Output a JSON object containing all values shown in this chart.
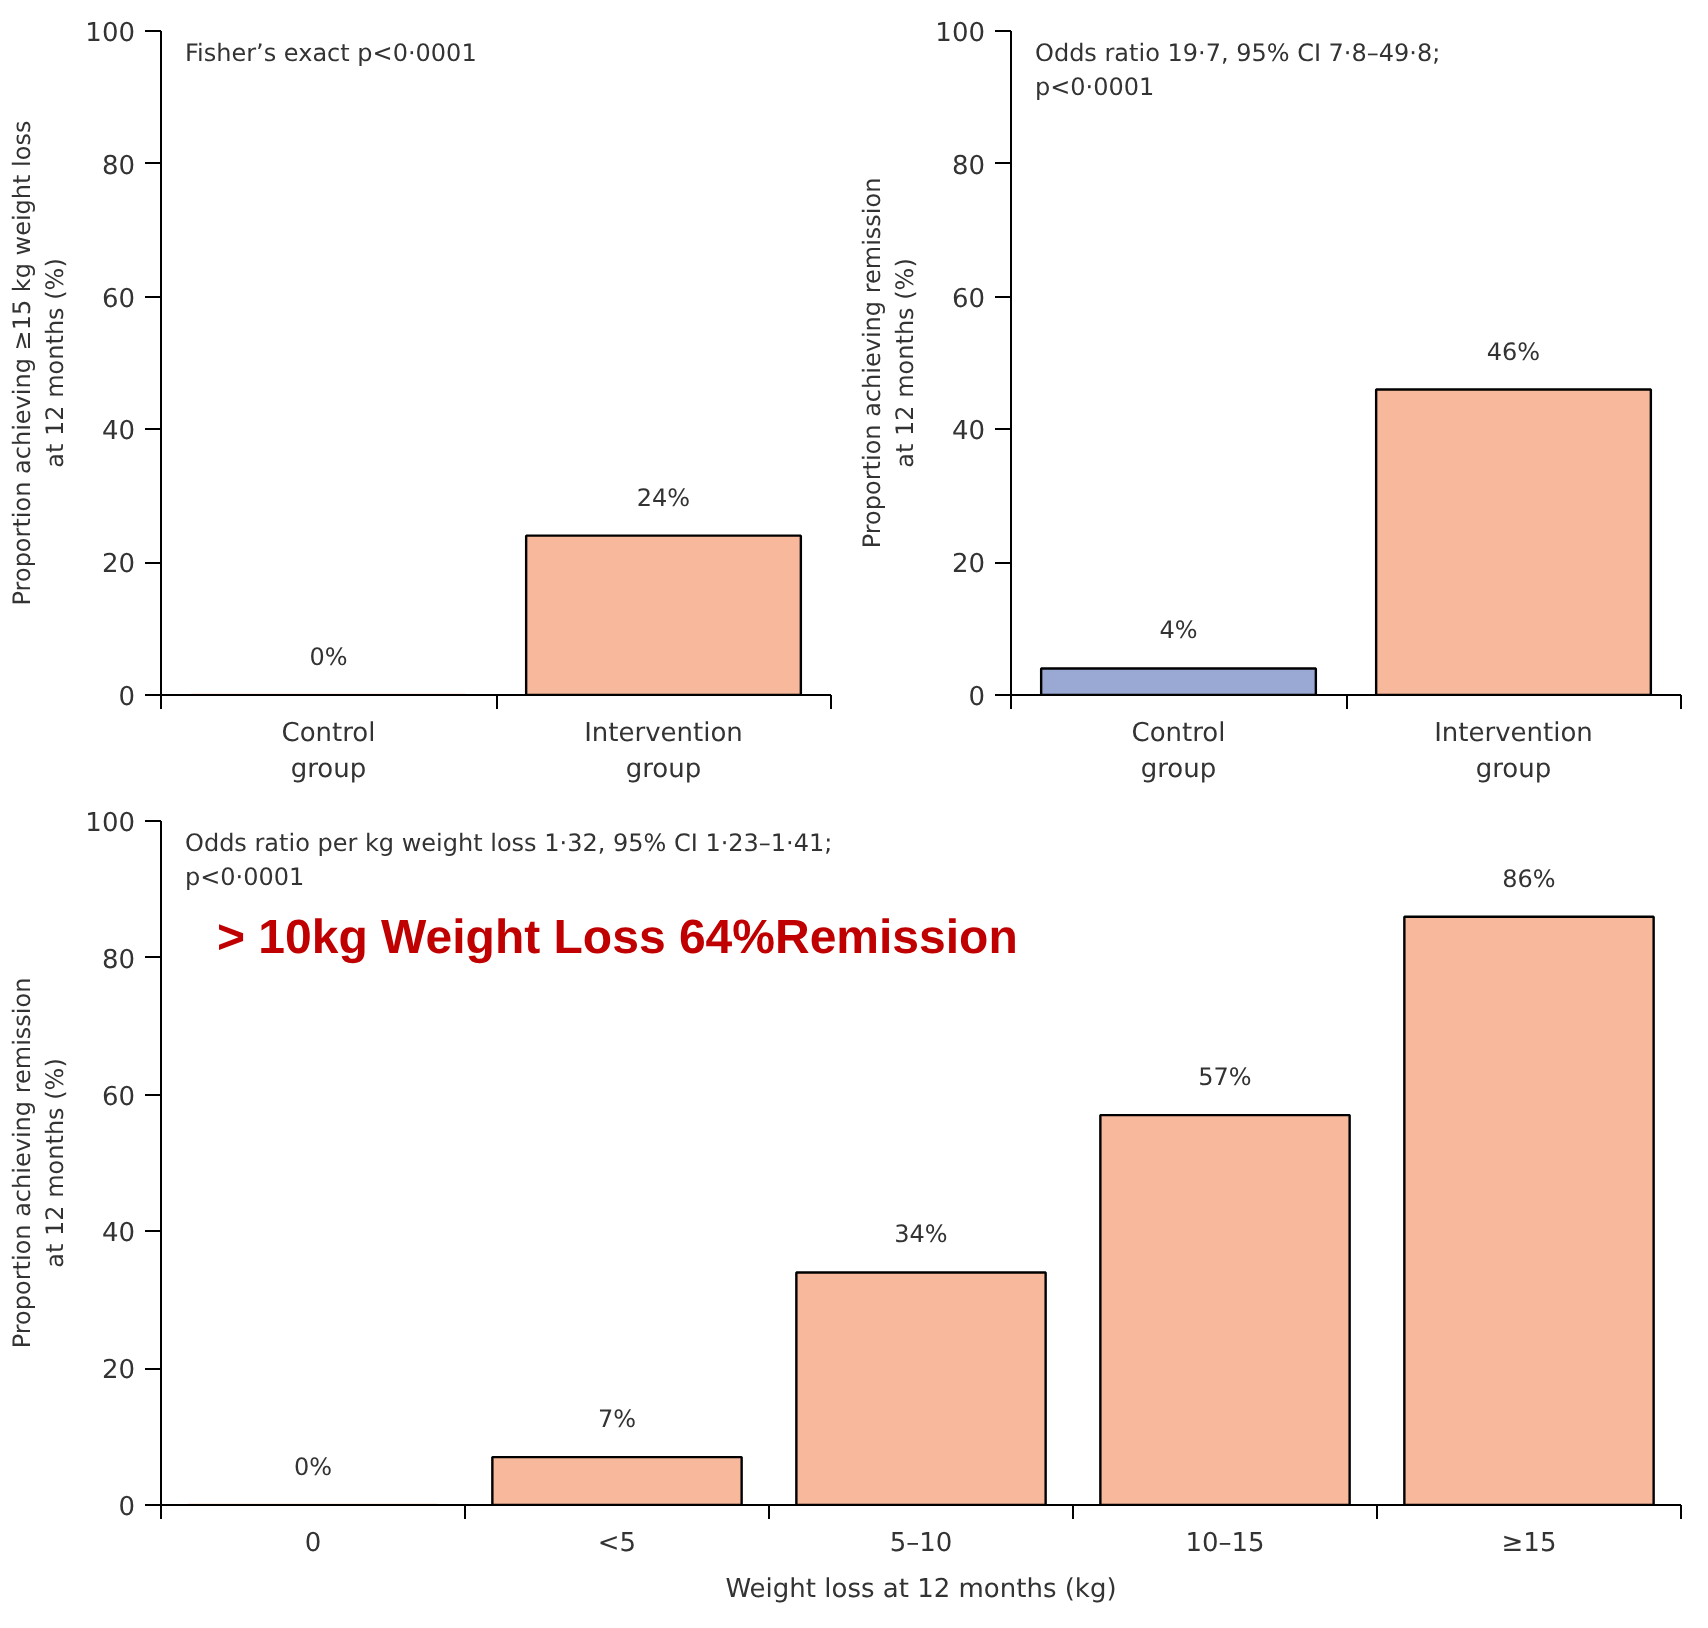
{
  "chart_data": [
    {
      "type": "bar",
      "categories": [
        "Control\ngroup",
        "Intervention\ngroup"
      ],
      "values": [
        0,
        24
      ],
      "colors": [
        "#f8b89b",
        "#f8b89b"
      ],
      "value_labels": [
        "0%",
        "24%"
      ],
      "ylabel": "Proportion achieving ≥15 kg weight loss\nat 12 months (%)",
      "ylim": [
        0,
        100
      ],
      "yticks": [
        0,
        20,
        40,
        60,
        80,
        100
      ],
      "grid": false,
      "annotations": [
        "Fisher’s exact p<0·0001"
      ]
    },
    {
      "type": "bar",
      "categories": [
        "Control\ngroup",
        "Intervention\ngroup"
      ],
      "values": [
        4,
        46
      ],
      "colors": [
        "#9aa8d4",
        "#f8b89b"
      ],
      "value_labels": [
        "4%",
        "46%"
      ],
      "ylabel": "Proportion achieving remission\nat 12 months (%)",
      "ylim": [
        0,
        100
      ],
      "yticks": [
        0,
        20,
        40,
        60,
        80,
        100
      ],
      "grid": false,
      "annotations": [
        "Odds ratio 19·7, 95% CI 7·8–49·8;\np<0·0001"
      ]
    },
    {
      "type": "bar",
      "categories": [
        "0",
        "<5",
        "5–10",
        "10–15",
        "≥15"
      ],
      "values": [
        0,
        7,
        34,
        57,
        86
      ],
      "colors": [
        "#f8b89b",
        "#f8b89b",
        "#f8b89b",
        "#f8b89b",
        "#f8b89b"
      ],
      "value_labels": [
        "0%",
        "7%",
        "34%",
        "57%",
        "86%"
      ],
      "xlabel": "Weight loss at 12 months (kg)",
      "ylabel": "Proportion achieving remission\nat 12 months (%)",
      "ylim": [
        0,
        100
      ],
      "yticks": [
        0,
        20,
        40,
        60,
        80,
        100
      ],
      "grid": false,
      "annotations": [
        "Odds ratio per kg weight loss 1·32, 95% CI 1·23–1·41;\np<0·0001",
        "> 10kg Weight Loss  64%Remission"
      ]
    }
  ]
}
